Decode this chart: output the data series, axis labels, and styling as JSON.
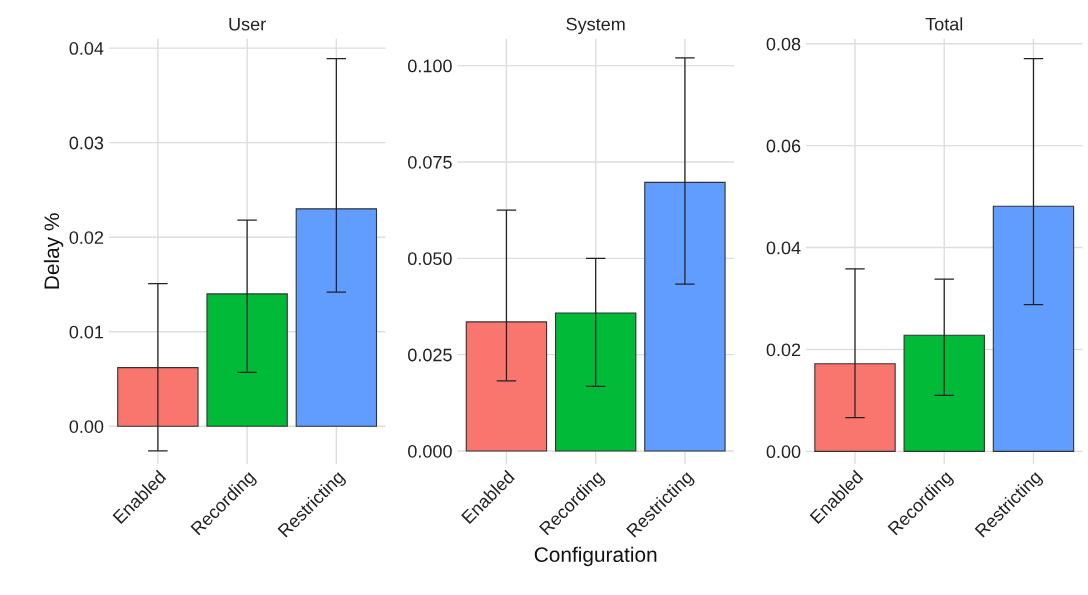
{
  "chart_data": [
    {
      "type": "bar",
      "title": "User",
      "ylabel": "Delay %",
      "categories": [
        "Enabled",
        "Recording",
        "Restricting"
      ],
      "values": [
        0.0062,
        0.014,
        0.023
      ],
      "errors": [
        [
          -0.0026,
          0.0151
        ],
        [
          0.0057,
          0.0218
        ],
        [
          0.0142,
          0.0389
        ]
      ],
      "colors": [
        "#f8766d",
        "#00ba38",
        "#619cff"
      ],
      "ylim": [
        -0.004,
        0.041
      ],
      "yticks": [
        {
          "value": 0,
          "label": "0.00"
        },
        0.01,
        0.02,
        0.03,
        0.04
      ],
      "grid": true
    },
    {
      "type": "bar",
      "title": "System",
      "xlabel": "Configuration",
      "categories": [
        "Enabled",
        "Recording",
        "Restricting"
      ],
      "values": [
        0.0335,
        0.0358,
        0.0697
      ],
      "errors": [
        [
          0.0182,
          0.0625
        ],
        [
          0.0168,
          0.05
        ],
        [
          0.0433,
          0.102
        ]
      ],
      "colors": [
        "#f8766d",
        "#00ba38",
        "#619cff"
      ],
      "ylim": [
        -0.0034,
        0.107
      ],
      "yticks": [
        {
          "value": 0,
          "label": "0.000"
        },
        0.025,
        {
          "value": 0.05,
          "label": "0.050"
        },
        0.075,
        {
          "value": 0.1,
          "label": "0.100"
        }
      ],
      "grid": true
    },
    {
      "type": "bar",
      "title": "Total",
      "categories": [
        "Enabled",
        "Recording",
        "Restricting"
      ],
      "values": [
        0.0172,
        0.0228,
        0.0481
      ],
      "errors": [
        [
          0.0066,
          0.0358
        ],
        [
          0.011,
          0.0338
        ],
        [
          0.0288,
          0.0771
        ]
      ],
      "colors": [
        "#f8766d",
        "#00ba38",
        "#619cff"
      ],
      "ylim": [
        -0.0025,
        0.081
      ],
      "yticks": [
        {
          "value": 0,
          "label": "0.00"
        },
        0.02,
        0.04,
        0.06,
        0.08
      ],
      "grid": true
    }
  ]
}
